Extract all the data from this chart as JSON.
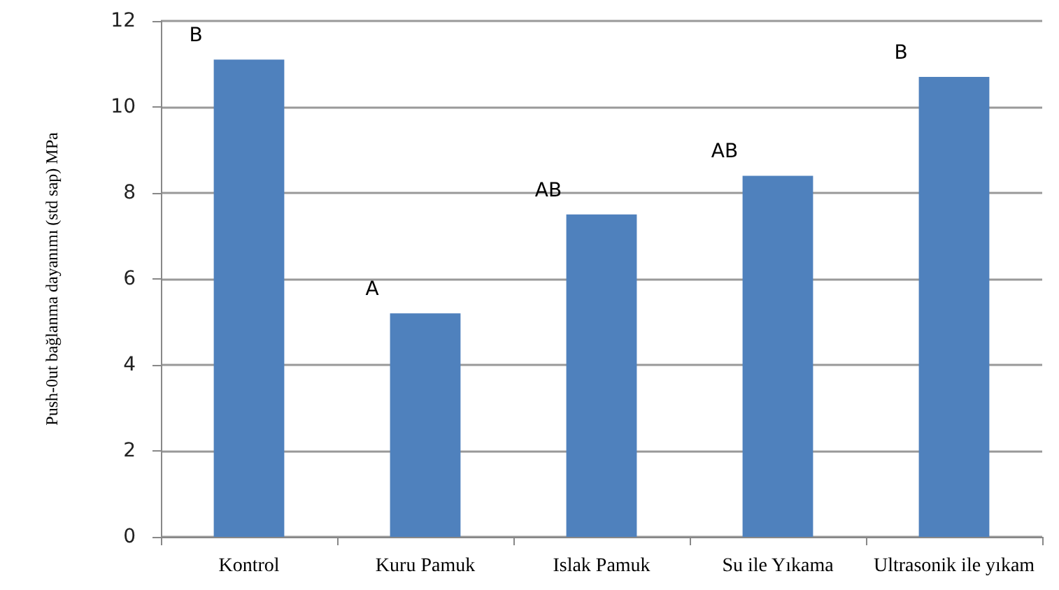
{
  "chart_data": {
    "type": "bar",
    "ylabel": "Push-0ut bağlanma dayanımı (std sap) MPa",
    "categories": [
      "Kontrol",
      "Kuru Pamuk",
      "Islak Pamuk",
      "Su ile Yıkama",
      "Ultrasonik ile yıkam"
    ],
    "values": [
      11.1,
      5.2,
      7.5,
      8.4,
      10.7
    ],
    "color": "#4f81bd",
    "ylim": [
      0,
      12
    ],
    "yticks": [
      0,
      2,
      4,
      6,
      8,
      10,
      12
    ],
    "grid": "y",
    "annotations": [
      {
        "text": "B",
        "x": "Kontrol",
        "y": 11.1
      },
      {
        "text": "A",
        "x": "Kuru Pamuk",
        "y": 5.2
      },
      {
        "text": "AB",
        "x": "Islak Pamuk",
        "y": 7.5
      },
      {
        "text": "AB",
        "x": "Su ile Yıkama",
        "y": 8.4
      },
      {
        "text": "B",
        "x": "Ultrasonik ile yıkam",
        "y": 10.7
      }
    ]
  }
}
